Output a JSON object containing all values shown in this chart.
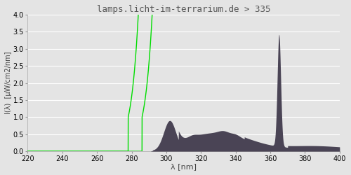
{
  "title": "lamps.licht-im-terrarium.de > 335",
  "xlabel": "λ [nm]",
  "ylabel": "I(λ)  [µW/cm2/nm]",
  "xlim": [
    220,
    400
  ],
  "ylim": [
    0,
    4.0
  ],
  "yticks": [
    0.0,
    0.5,
    1.0,
    1.5,
    2.0,
    2.5,
    3.0,
    3.5,
    4.0
  ],
  "xticks": [
    220,
    240,
    260,
    280,
    300,
    320,
    340,
    360,
    380,
    400
  ],
  "bg_color": "#e4e4e4",
  "grid_color": "#ffffff",
  "spectrum_color": "#4a4455",
  "green_line_color": "#00dd00",
  "title_color": "#555555",
  "title_fontsize": 9,
  "axis_fontsize": 8
}
